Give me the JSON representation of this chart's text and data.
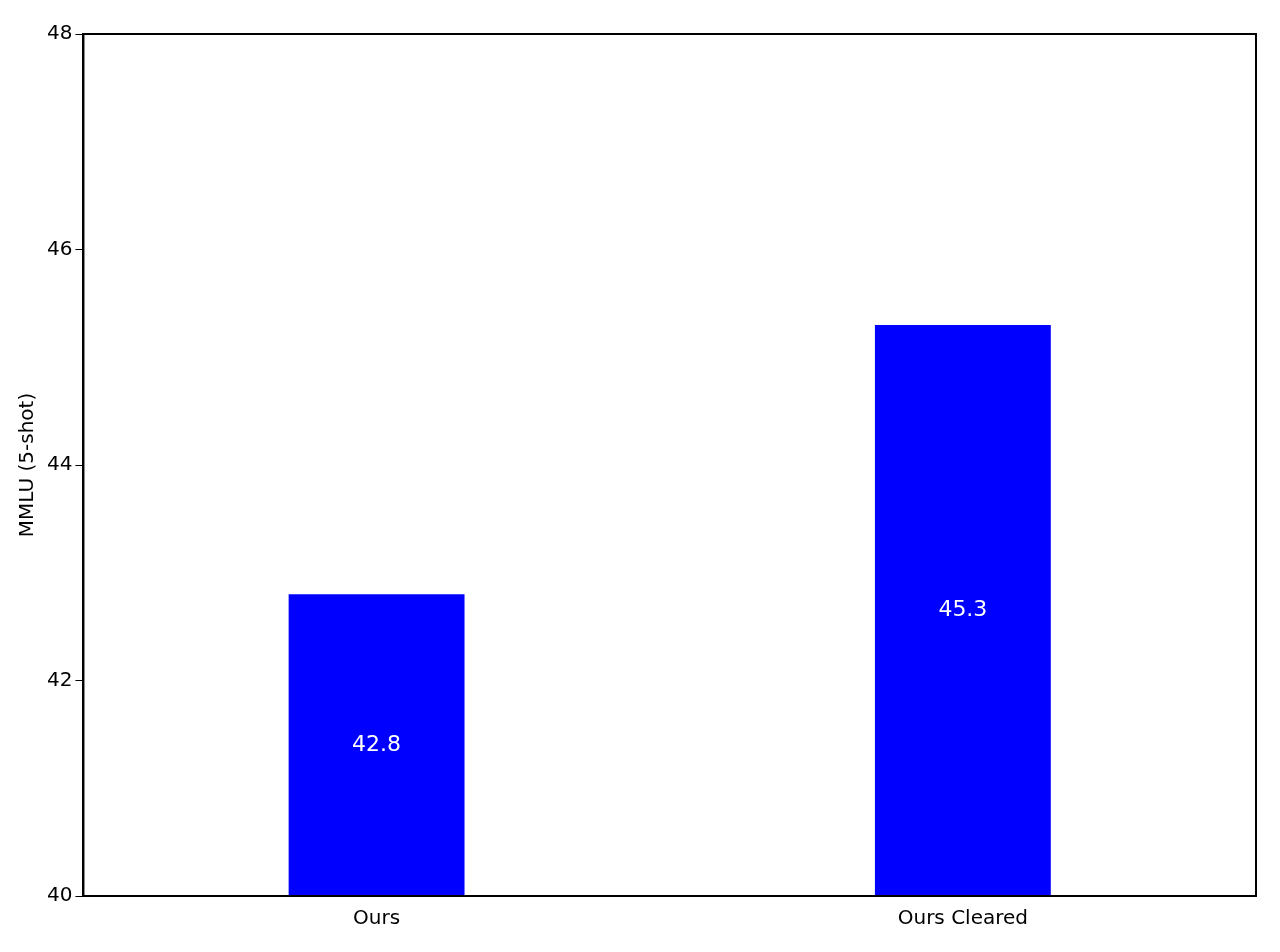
{
  "chart_data": {
    "type": "bar",
    "ylabel": "MMLU (5-shot)",
    "categories": [
      "Ours",
      "Ours Cleared"
    ],
    "values": [
      42.8,
      45.3
    ],
    "color": "#0000ff",
    "ylim": [
      40,
      48
    ],
    "yticks": [
      40,
      42,
      44,
      46,
      48
    ],
    "grid": false,
    "legend": false,
    "data_labels": true
  }
}
